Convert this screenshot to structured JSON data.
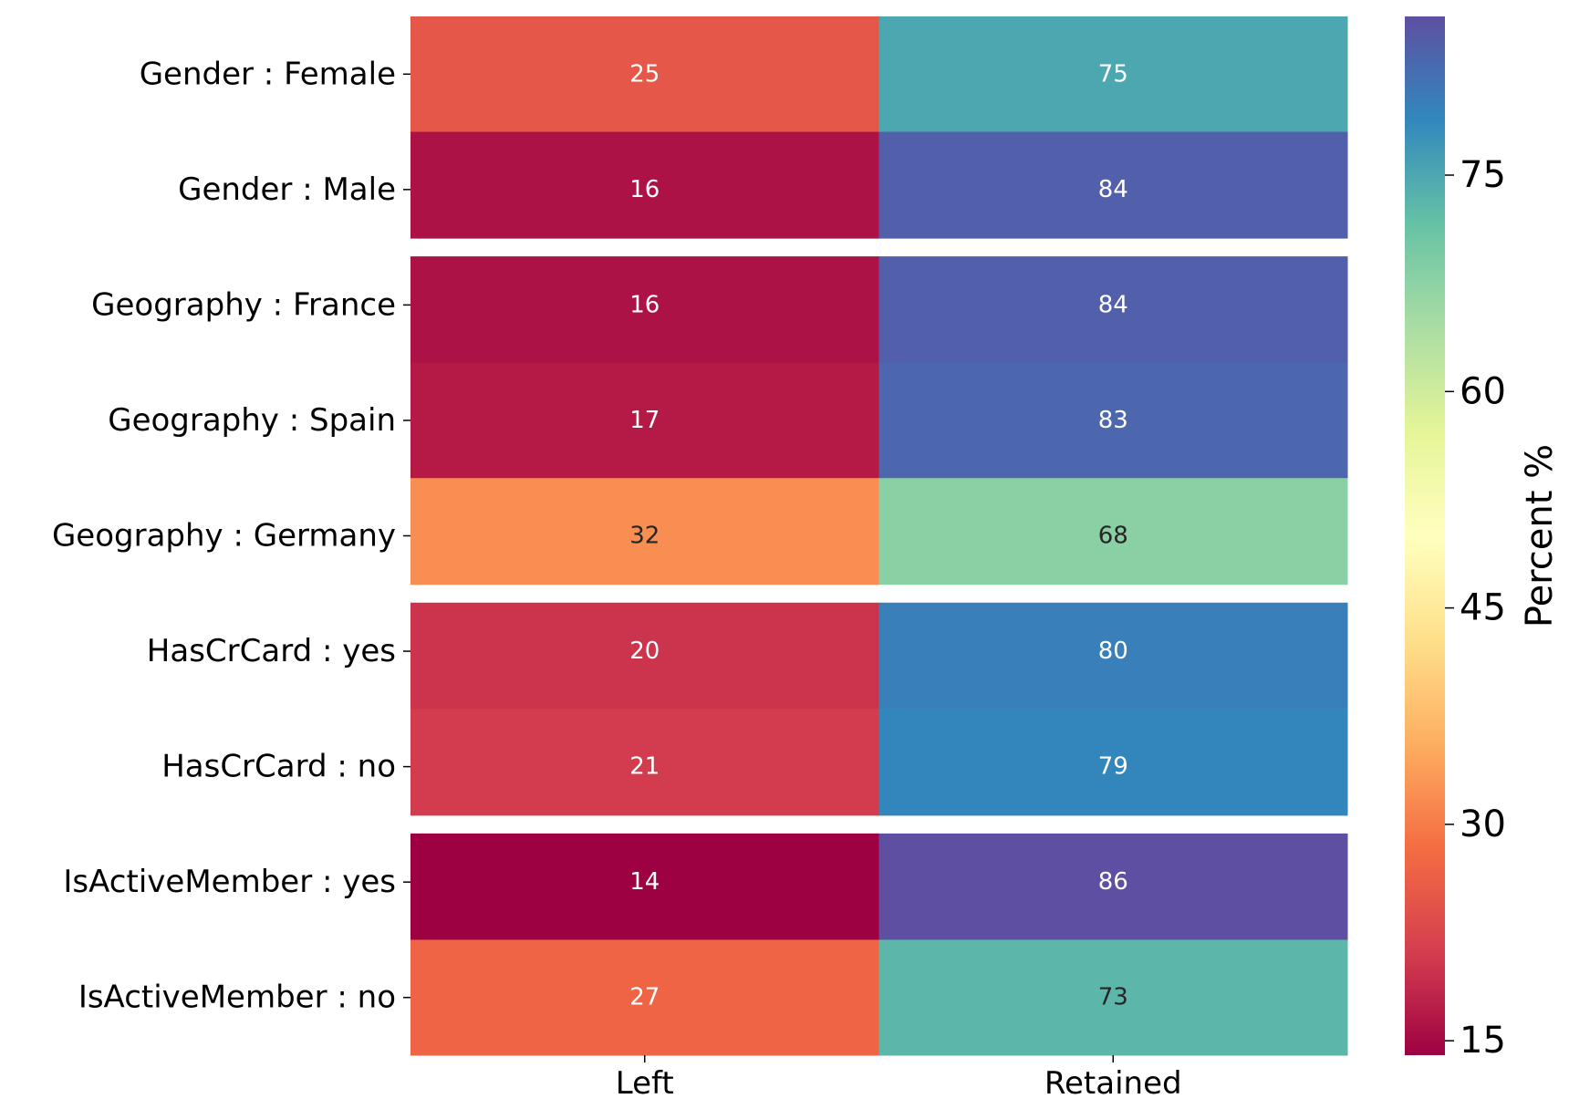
{
  "chart_data": {
    "type": "heatmap",
    "columns": [
      "Left",
      "Retained"
    ],
    "rows": [
      {
        "label": "Gender : Female",
        "values": [
          25,
          75
        ]
      },
      {
        "label": "Gender : Male",
        "values": [
          16,
          84
        ]
      },
      {
        "label": "Geography : France",
        "values": [
          16,
          84
        ]
      },
      {
        "label": "Geography : Spain",
        "values": [
          17,
          83
        ]
      },
      {
        "label": "Geography : Germany",
        "values": [
          32,
          68
        ]
      },
      {
        "label": "HasCrCard : yes",
        "values": [
          20,
          80
        ]
      },
      {
        "label": "HasCrCard : no",
        "values": [
          21,
          79
        ]
      },
      {
        "label": "IsActiveMember : yes",
        "values": [
          14,
          86
        ]
      },
      {
        "label": "IsActiveMember : no",
        "values": [
          27,
          73
        ]
      }
    ],
    "groups_break_after": [
      1,
      4,
      6
    ],
    "colorbar": {
      "label": "Percent %",
      "range": [
        14,
        86
      ],
      "ticks": [
        15,
        30,
        45,
        60,
        75
      ],
      "colormap": "Spectral"
    }
  }
}
